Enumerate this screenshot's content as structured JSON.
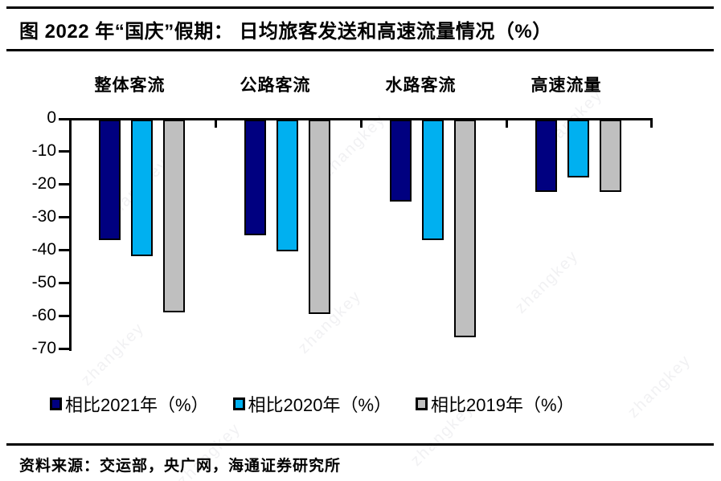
{
  "header": {
    "title": "图  2022 年“国庆”假期：  日均旅客发送和高速流量情况（%）"
  },
  "footer": {
    "source": "资料来源：交运部，央广网，海通证券研究所"
  },
  "watermark": "zhangkey",
  "chart_data": {
    "type": "bar",
    "title": "2022 年“国庆”假期： 日均旅客发送和高速流量情况（%）",
    "categories": [
      "整体客流",
      "公路客流",
      "水路客流",
      "高速流量"
    ],
    "series": [
      {
        "name": "相比2021年（%）",
        "color": "#000080",
        "values": [
          -36.5,
          -35,
          -25,
          -22
        ]
      },
      {
        "name": "相比2020年（%）",
        "color": "#00B0F0",
        "values": [
          -41.5,
          -40,
          -36.5,
          -17.5
        ]
      },
      {
        "name": "相比2019年（%）",
        "color": "#BFBFBF",
        "values": [
          -58.5,
          -59,
          -66,
          -22
        ]
      }
    ],
    "xlabel": "",
    "ylabel": "",
    "ylim": [
      -70,
      0
    ],
    "yticks": [
      0,
      -10,
      -20,
      -30,
      -40,
      -50,
      -60,
      -70
    ],
    "grid": false,
    "legend_position": "bottom",
    "bar_outline_color": "#000000",
    "axis_color": "#000000"
  }
}
